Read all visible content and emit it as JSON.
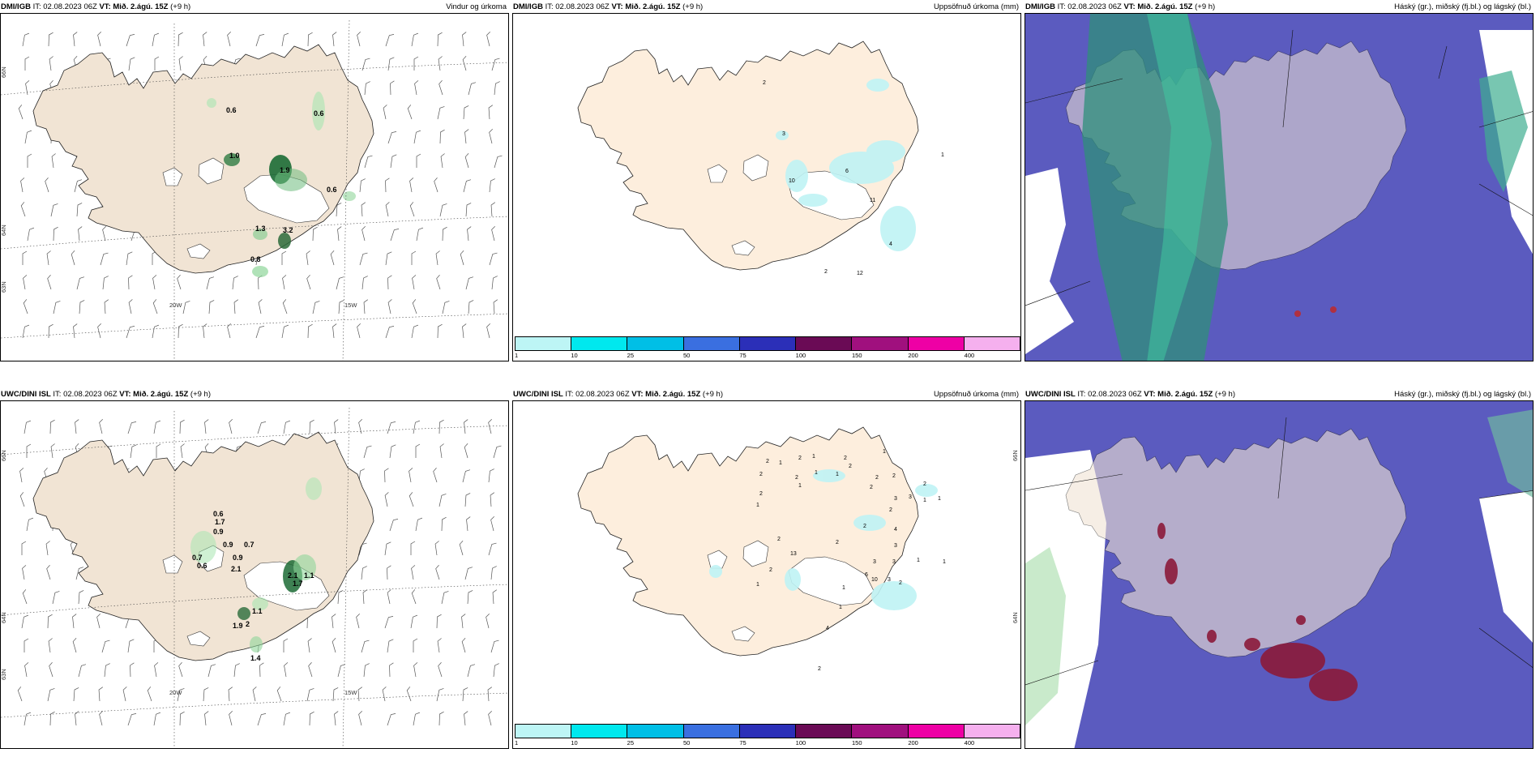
{
  "panels": [
    {
      "id": "dmi-wind",
      "model": "DMI/IGB",
      "it_label": "IT:",
      "it_value": "02.08.2023 06Z",
      "vt_label": "VT:",
      "vt_value": "Mið. 2.ágú. 15Z",
      "lead": "(+9 h)",
      "product": "Vindur og úrkoma",
      "lat_labels": [
        "66N",
        "64N",
        "63N"
      ],
      "lon_labels": [
        "20W",
        "15W"
      ],
      "values": [
        "0.6",
        "0.6",
        "1.0",
        "1.9",
        "0.6",
        "1.3",
        "3.2",
        "0.8"
      ]
    },
    {
      "id": "dmi-accum",
      "model": "DMI/IGB",
      "it_label": "IT:",
      "it_value": "02.08.2023 06Z",
      "vt_label": "VT:",
      "vt_value": "Mið. 2.ágú. 15Z",
      "lead": "(+9 h)",
      "product": "Uppsöfnuð úrkoma (mm)",
      "values": [
        "2",
        "3",
        "10",
        "6",
        "1",
        "11",
        "4",
        "2",
        "12"
      ]
    },
    {
      "id": "dmi-cloud",
      "model": "DMI/IGB",
      "it_label": "IT:",
      "it_value": "02.08.2023 06Z",
      "vt_label": "VT:",
      "vt_value": "Mið. 2.ágú. 15Z",
      "lead": "(+9 h)",
      "product": "Háský (gr.), miðský (fj.bl.) og lágský (bl.)"
    },
    {
      "id": "uwc-wind",
      "model": "UWC/DINI ISL",
      "it_label": "IT:",
      "it_value": "02.08.2023 06Z",
      "vt_label": "VT:",
      "vt_value": "Mið. 2.ágú. 15Z",
      "lead": "(+9 h)",
      "product": "",
      "lat_labels": [
        "66N",
        "64N",
        "63N"
      ],
      "lon_labels": [
        "20W",
        "15W"
      ],
      "values": [
        "0.6",
        "1.7",
        "0.9",
        "0.9",
        "0.7",
        "0.7",
        "0.6",
        "0.9",
        "2.1",
        "2.1",
        "1.7",
        "1.1",
        "1.1",
        "1.9",
        "2",
        "1.4"
      ]
    },
    {
      "id": "uwc-accum",
      "model": "UWC/DINI ISL",
      "it_label": "IT:",
      "it_value": "02.08.2023 06Z",
      "vt_label": "VT:",
      "vt_value": "Mið. 2.ágú. 15Z",
      "lead": "(+9 h)",
      "product": "Uppsöfnuð úrkoma (mm)",
      "lat_labels": [
        "66N",
        "64N"
      ],
      "values": [
        "2",
        "1",
        "2",
        "1",
        "2",
        "1",
        "2",
        "2",
        "2",
        "1",
        "1",
        "2",
        "2",
        "3",
        "2",
        "1",
        "1",
        "2",
        "2",
        "2",
        "3",
        "4",
        "3",
        "1",
        "1",
        "2",
        "13",
        "2",
        "2",
        "6",
        "10",
        "3",
        "2",
        "1",
        "4",
        "2",
        "1",
        "1",
        "1",
        "2",
        "3",
        "3",
        "1"
      ]
    },
    {
      "id": "uwc-cloud",
      "model": "UWC/DINI ISL",
      "it_label": "IT:",
      "it_value": "02.08.2023 06Z",
      "vt_label": "VT:",
      "vt_value": "Mið. 2.ágú. 15Z",
      "lead": "(+9 h)",
      "product": "Háský (gr.), miðský (fj.bl.) og lágský (bl.)"
    }
  ],
  "legend": {
    "ticks": [
      "1",
      "10",
      "25",
      "50",
      "75",
      "100",
      "150",
      "200",
      "400"
    ],
    "colors": [
      "#bdf5f5",
      "#00e8ee",
      "#00bfe6",
      "#3a6fe0",
      "#2b2fb8",
      "#6a0a55",
      "#a0107e",
      "#ee00a5",
      "#f5b0ee"
    ]
  },
  "colors": {
    "land_wind": "#f1e4d4",
    "land_accum": "#fdeedd",
    "cloud_blue": "#5b5bbf",
    "cloud_green": "#2f8f7a",
    "precip_cyan": "#bff3f5",
    "precip_green": "#22aa44"
  }
}
